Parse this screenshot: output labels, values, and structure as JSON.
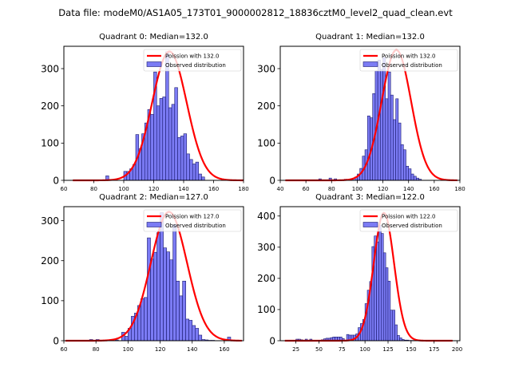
{
  "suptitle": "Data file: modeM0/AS1A05_173T01_9000002812_18836cztM0_level2_quad_clean.evt",
  "colors": {
    "bar_fill": "#7b7bf4",
    "bar_edge": "#1a1a6e",
    "poisson_line": "#ff0000"
  },
  "chart_data": [
    {
      "type": "bar",
      "title": "Quadrant 0: Median=132.0",
      "median": 132.0,
      "xlim": [
        60,
        180
      ],
      "ylim": [
        0,
        360
      ],
      "xticks": [
        60,
        80,
        100,
        120,
        140,
        160,
        180
      ],
      "yticks": [
        0,
        100,
        200,
        300
      ],
      "legend": {
        "placement": "top-right",
        "entries": [
          "Poission with 132.0",
          "Observed distribution"
        ]
      },
      "bin_width": 2,
      "histogram": {
        "bin_starts": [
          88,
          100,
          102,
          104,
          106,
          108,
          110,
          112,
          114,
          116,
          118,
          120,
          122,
          124,
          126,
          128,
          130,
          132,
          134,
          136,
          138,
          140,
          142,
          144,
          146,
          148,
          150,
          152
        ],
        "counts": [
          12,
          24,
          24,
          31,
          42,
          123,
          85,
          125,
          154,
          190,
          177,
          291,
          200,
          220,
          224,
          345,
          195,
          204,
          249,
          115,
          119,
          125,
          71,
          56,
          44,
          49,
          17,
          9
        ]
      },
      "poisson_mean": 132.0,
      "poisson_peak": 346,
      "poisson_range": [
        66,
        180
      ]
    },
    {
      "type": "bar",
      "title": "Quadrant 1: Median=132.0",
      "median": 132.0,
      "xlim": [
        40,
        180
      ],
      "ylim": [
        0,
        360
      ],
      "xticks": [
        40,
        60,
        80,
        100,
        120,
        140,
        160,
        180
      ],
      "yticks": [
        0,
        100,
        200,
        300
      ],
      "legend": {
        "placement": "top-right",
        "entries": [
          "Poission with 132.0",
          "Observed distribution"
        ]
      },
      "bin_width": 2,
      "histogram": {
        "bin_starts": [
          70,
          78,
          82,
          90,
          95,
          98,
          100,
          102,
          104,
          106,
          108,
          110,
          112,
          114,
          116,
          118,
          120,
          122,
          124,
          126,
          128,
          130,
          132,
          134,
          136,
          138,
          140,
          142,
          144,
          146,
          148
        ],
        "counts": [
          4,
          6,
          4,
          3,
          4,
          9,
          17,
          32,
          65,
          82,
          173,
          168,
          233,
          294,
          323,
          298,
          330,
          219,
          291,
          229,
          163,
          219,
          154,
          96,
          82,
          38,
          31,
          17,
          11,
          6,
          3
        ]
      },
      "poisson_mean": 132.0,
      "poisson_peak": 350,
      "poisson_range": [
        44,
        178
      ]
    },
    {
      "type": "bar",
      "title": "Quadrant 2: Median=127.0",
      "median": 127.0,
      "xlim": [
        60,
        172
      ],
      "ylim": [
        0,
        335
      ],
      "xticks": [
        60,
        80,
        100,
        120,
        140,
        160
      ],
      "yticks": [
        0,
        100,
        200,
        300
      ],
      "legend": {
        "placement": "top-right",
        "entries": [
          "Poission with 127.0",
          "Observed distribution"
        ]
      },
      "bin_width": 2,
      "histogram": {
        "bin_starts": [
          76,
          80,
          88,
          92,
          96,
          98,
          100,
          102,
          104,
          106,
          108,
          110,
          112,
          114,
          116,
          118,
          120,
          122,
          124,
          126,
          128,
          130,
          132,
          134,
          136,
          138,
          140,
          142,
          144,
          146,
          148,
          150,
          152,
          162
        ],
        "counts": [
          3,
          3,
          2,
          2,
          21,
          11,
          31,
          61,
          69,
          88,
          105,
          108,
          257,
          204,
          221,
          270,
          320,
          232,
          222,
          202,
          290,
          149,
          112,
          149,
          54,
          51,
          38,
          31,
          14,
          3,
          2,
          1,
          1,
          9
        ]
      },
      "poisson_mean": 127.0,
      "poisson_peak": 322,
      "poisson_range": [
        61,
        171
      ]
    },
    {
      "type": "bar",
      "title": "Quadrant 3: Median=122.0",
      "median": 122.0,
      "xlim": [
        8,
        203
      ],
      "ylim": [
        0,
        430
      ],
      "xticks": [
        25,
        50,
        75,
        100,
        125,
        150,
        175,
        200
      ],
      "yticks": [
        0,
        100,
        200,
        300,
        400
      ],
      "legend": {
        "placement": "top-right",
        "entries": [
          "Poission with 122.0",
          "Observed distribution"
        ]
      },
      "bin_width": 2.5,
      "histogram": {
        "bin_starts": [
          25,
          27.5,
          30,
          35,
          40,
          52.5,
          55,
          57.5,
          60,
          62.5,
          65,
          67.5,
          70,
          72.5,
          75,
          80,
          82.5,
          85,
          87.5,
          90,
          92.5,
          95,
          97.5,
          100,
          102.5,
          105,
          107.5,
          110,
          112.5,
          115,
          117.5,
          120,
          122.5,
          125,
          127.5,
          130,
          132.5,
          135,
          137.5,
          140,
          142.5,
          145,
          147.5,
          150,
          152.5,
          155
        ],
        "counts": [
          5,
          5,
          3,
          5,
          5,
          3,
          6,
          8,
          8,
          10,
          12,
          12,
          12,
          12,
          7,
          20,
          18,
          18,
          18,
          22,
          42,
          55,
          68,
          119,
          162,
          190,
          302,
          336,
          317,
          370,
          344,
          282,
          234,
          191,
          98,
          98,
          51,
          17,
          9,
          4,
          2,
          2,
          1,
          1,
          1,
          1
        ]
      },
      "poisson_mean": 122.0,
      "poisson_peak": 410,
      "poisson_range": [
        13,
        195
      ]
    }
  ]
}
